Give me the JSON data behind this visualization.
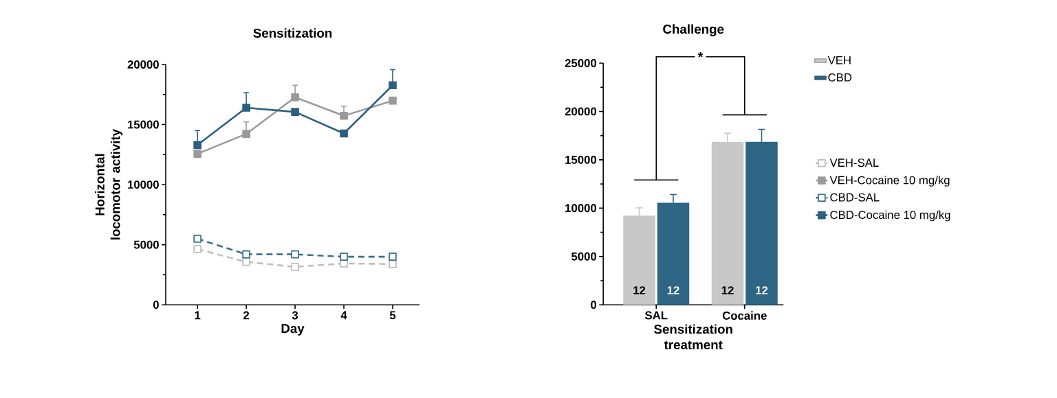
{
  "chart_data": [
    {
      "type": "line",
      "title": "Sensitization",
      "xlabel": "Day",
      "ylabel": "Horizontal locomotor activity",
      "x": [
        1,
        2,
        3,
        4,
        5
      ],
      "xlim": [
        0.35,
        5.55
      ],
      "xticks": [
        1,
        2,
        3,
        4,
        5
      ],
      "ylim": [
        0,
        20000
      ],
      "yticks": [
        0,
        {
          "value": 2500,
          "label": null
        },
        5000,
        {
          "value": 7500,
          "label": null
        },
        10000,
        {
          "value": 12500,
          "label": null
        },
        15000,
        {
          "value": 17500,
          "label": null
        },
        20000
      ],
      "legend": "right",
      "marker": "square",
      "series": [
        {
          "name": "VEH-SAL",
          "color": "#bdbdbd",
          "line_style": "dashed",
          "values": [
            4630,
            3570,
            3160,
            3440,
            3390
          ]
        },
        {
          "name": "VEH-Cocaine 10 mg/kg",
          "color": "#9a9a9a",
          "line_style": "solid",
          "values": [
            12570,
            14220,
            17270,
            15730,
            16990
          ],
          "errors": [
            null,
            1000,
            1000,
            800,
            null
          ]
        },
        {
          "name": "CBD-SAL",
          "color": "#3a6f8f",
          "line_style": "dashed",
          "values": [
            5500,
            4200,
            4200,
            4000,
            4000
          ]
        },
        {
          "name": "CBD-Cocaine 10 mg/kg",
          "color": "#2c6080",
          "line_style": "solid",
          "values": [
            13300,
            16400,
            16050,
            14260,
            18270
          ],
          "errors": [
            1200,
            1250,
            null,
            null,
            1300
          ]
        }
      ]
    },
    {
      "type": "bar",
      "title": "Challenge",
      "xlabel": "Sensitization treatment",
      "categories": [
        "SAL",
        "Cocaine"
      ],
      "ylim": [
        0,
        25000
      ],
      "yticks": [
        0,
        {
          "value": 2500,
          "label": null
        },
        5000,
        {
          "value": 7500,
          "label": null
        },
        10000,
        {
          "value": 12500,
          "label": null
        },
        15000,
        {
          "value": 17500,
          "label": null
        },
        20000,
        {
          "value": 22500,
          "label": null
        },
        25000
      ],
      "legend": "top right",
      "annotations": [
        "*",
        "12",
        "12",
        "12",
        "12"
      ],
      "series": [
        {
          "name": "VEH",
          "color": "#c8c8c8",
          "values": [
            9230,
            16850
          ],
          "errors": [
            800,
            900
          ]
        },
        {
          "name": "CBD",
          "color": "#2f6584",
          "values": [
            10560,
            16850
          ],
          "errors": [
            850,
            1300
          ]
        }
      ]
    }
  ]
}
